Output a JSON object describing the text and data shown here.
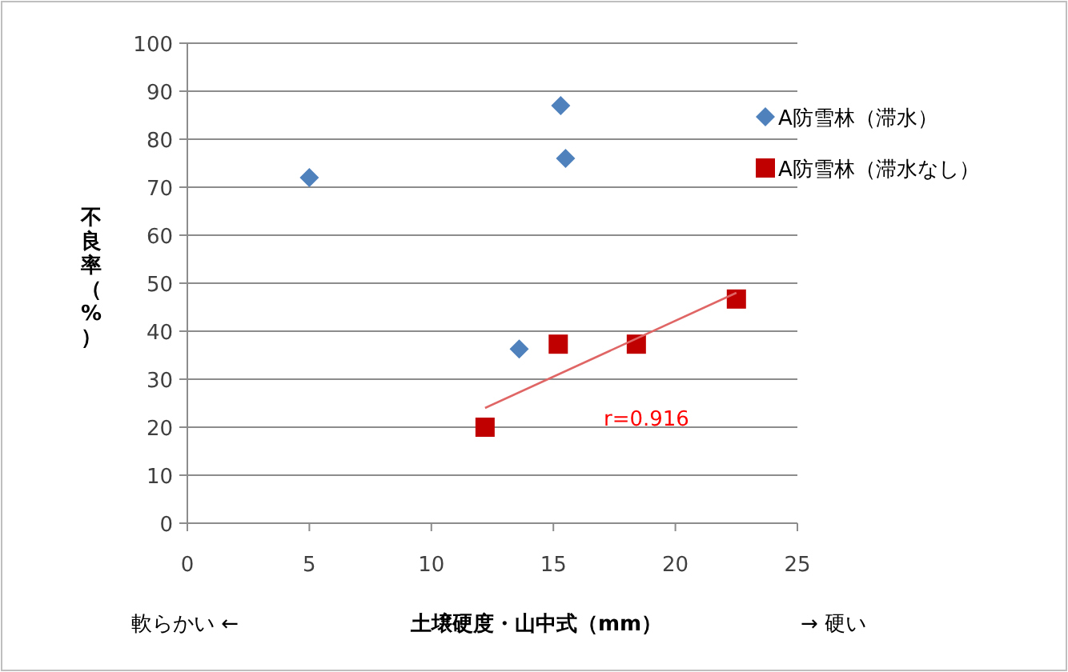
{
  "chart_data": {
    "type": "scatter",
    "xlabel": "土壌硬度・山中式（mm）",
    "ylabel": "不良率（%）",
    "xlim": [
      0,
      25
    ],
    "xticks": [
      0,
      5,
      10,
      15,
      20,
      25
    ],
    "ylim": [
      0,
      100
    ],
    "yticks": [
      0,
      10,
      20,
      30,
      40,
      50,
      60,
      70,
      80,
      90,
      100
    ],
    "grid": "y",
    "legend": "top right",
    "annotations": [
      "r=0.916",
      "軟らかい ←",
      "→ 硬い"
    ],
    "series": [
      {
        "name": "A防雪林（滞水）",
        "color": "#4f81bd",
        "marker": "diamond",
        "x": [
          5.0,
          15.3,
          15.5,
          13.6
        ],
        "values": [
          72,
          87,
          76,
          36.3
        ]
      },
      {
        "name": "A防雪林（滞水なし）",
        "color": "#c00000",
        "marker": "square",
        "x": [
          12.2,
          15.2,
          18.4,
          22.5
        ],
        "values": [
          20,
          37.3,
          37.3,
          46.7
        ]
      },
      {
        "type": "line",
        "color": "#e06666",
        "marker": "none",
        "x": [
          12.2,
          22.5
        ],
        "values": [
          24,
          48
        ]
      }
    ]
  }
}
